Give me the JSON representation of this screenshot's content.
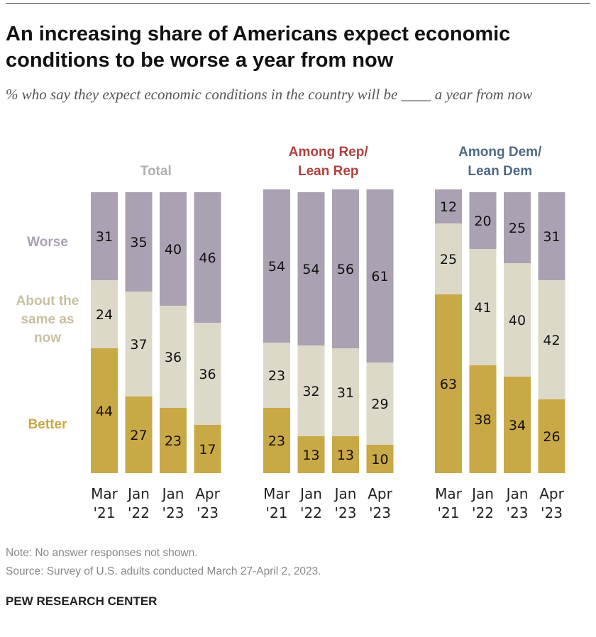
{
  "title": "An increasing share of Americans expect economic conditions to be worse a year from now",
  "subtitle": "% who say they expect economic conditions in the country will be ____ a year from now",
  "note": "Note: No answer responses not shown.",
  "source": "Source: Survey of U.S. adults conducted March 27-April 2, 2023.",
  "brand": "PEW RESEARCH CENTER",
  "chart_data": {
    "type": "bar",
    "stacked": true,
    "categories": [
      [
        "Mar",
        "'21"
      ],
      [
        "Jan",
        "'22"
      ],
      [
        "Jan",
        "'23"
      ],
      [
        "Apr",
        "'23"
      ]
    ],
    "legend_labels": {
      "worse": "Worse",
      "same": [
        "About the",
        "same as",
        "now"
      ],
      "better": "Better"
    },
    "colors": {
      "worse": "#aaa1b2",
      "same": "#dcd9c9",
      "better": "#c9a846",
      "same_label": "#c8c0a0",
      "total_title": "#b0b0b0",
      "rep_title": "#b0413e",
      "dem_title": "#4e6a86"
    },
    "groups": [
      {
        "title": [
          "Total"
        ],
        "better": [
          44,
          27,
          23,
          17
        ],
        "same": [
          24,
          37,
          36,
          36
        ],
        "worse": [
          31,
          35,
          40,
          46
        ]
      },
      {
        "title": [
          "Among Rep/",
          "Lean Rep"
        ],
        "better": [
          23,
          13,
          13,
          10
        ],
        "same": [
          23,
          32,
          31,
          29
        ],
        "worse": [
          54,
          54,
          56,
          61
        ]
      },
      {
        "title": [
          "Among Dem/",
          "Lean Dem"
        ],
        "better": [
          63,
          38,
          34,
          26
        ],
        "same": [
          25,
          41,
          40,
          42
        ],
        "worse": [
          12,
          20,
          25,
          31
        ]
      }
    ],
    "ylim": [
      0,
      100
    ],
    "grid": false
  }
}
